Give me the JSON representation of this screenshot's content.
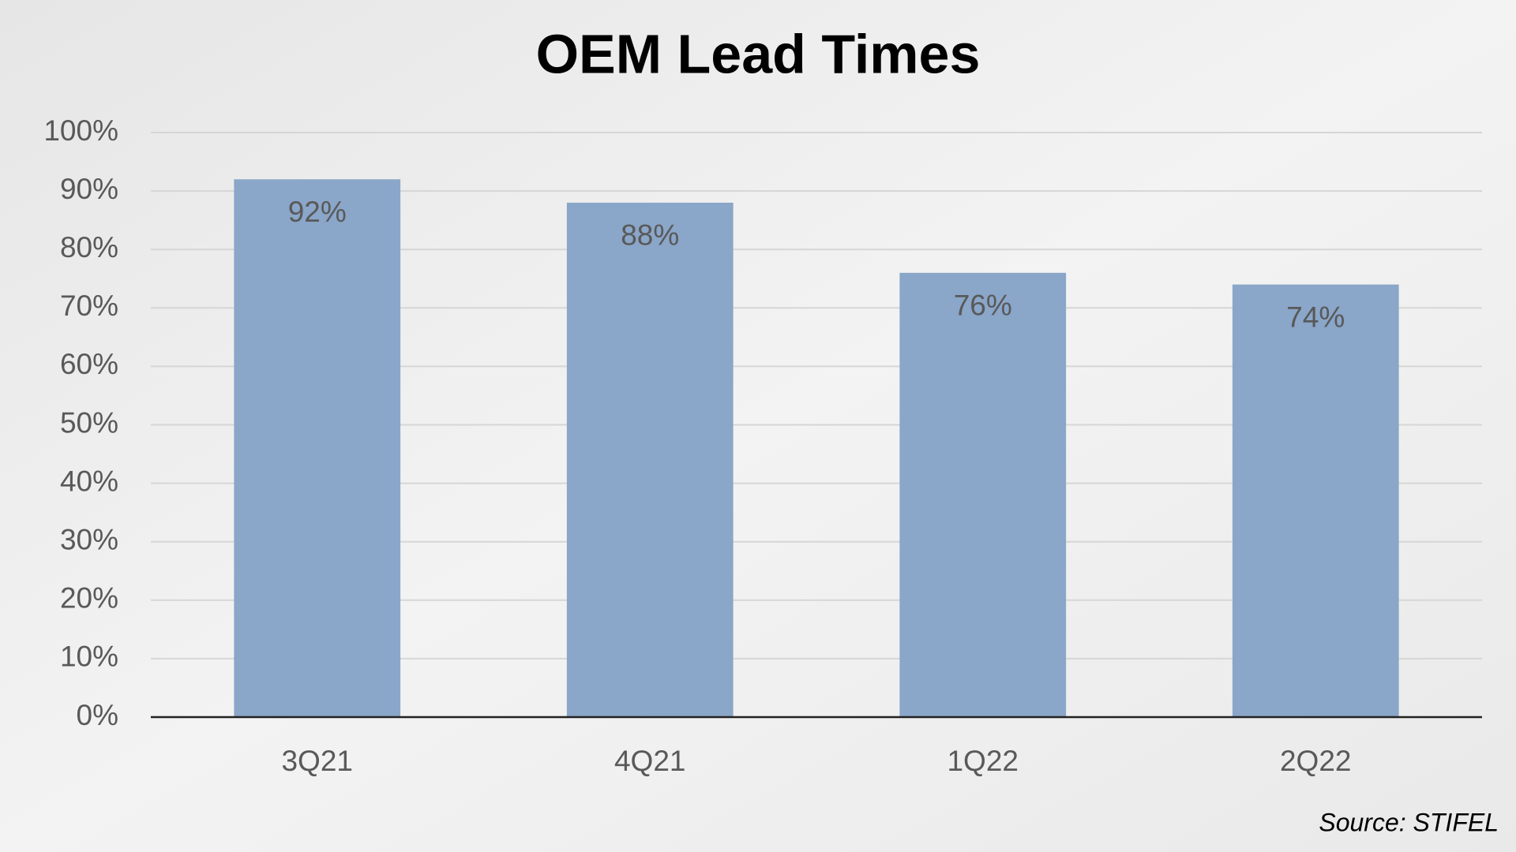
{
  "chart_data": {
    "type": "bar",
    "title": "OEM Lead Times",
    "categories": [
      "3Q21",
      "4Q21",
      "1Q22",
      "2Q22"
    ],
    "values": [
      92,
      88,
      76,
      74
    ],
    "value_labels": [
      "92%",
      "88%",
      "76%",
      "74%"
    ],
    "color": "#8aa6c9",
    "ylim": [
      0,
      100
    ],
    "yticks": [
      {
        "value": 0,
        "label": "0%"
      },
      {
        "value": 10,
        "label": "10%"
      },
      {
        "value": 20,
        "label": "20%"
      },
      {
        "value": 30,
        "label": "30%"
      },
      {
        "value": 40,
        "label": "40%"
      },
      {
        "value": 50,
        "label": "50%"
      },
      {
        "value": 60,
        "label": "60%"
      },
      {
        "value": 70,
        "label": "70%"
      },
      {
        "value": 80,
        "label": "80%"
      },
      {
        "value": 90,
        "label": "90%"
      },
      {
        "value": 100,
        "label": "100%"
      }
    ],
    "grid": true,
    "source": "Source: STIFEL"
  }
}
